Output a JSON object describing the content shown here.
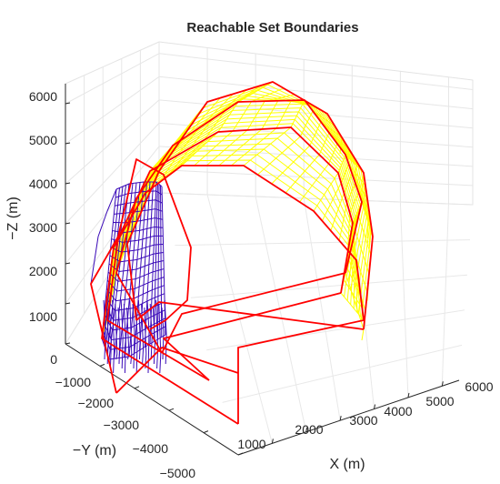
{
  "chart_data": {
    "type": "surface3d",
    "title": "Reachable Set Boundaries",
    "xlabel": "X (m)",
    "ylabel": "−Y (m)",
    "zlabel": "−Z (m)",
    "x_ticks": [
      "1000",
      "2000",
      "3000",
      "4000",
      "5000",
      "6000"
    ],
    "y_ticks": [
      "−1000",
      "−2000",
      "−3000",
      "−4000",
      "−5000"
    ],
    "z_ticks": [
      "0",
      "1000",
      "2000",
      "3000",
      "4000",
      "5000",
      "6000"
    ],
    "xlim": [
      0,
      6500
    ],
    "ylim": [
      0,
      -5000
    ],
    "zlim": [
      0,
      6500
    ],
    "grid": true,
    "series": [
      {
        "role": "large boundary surface (mesh)",
        "color": "#ffff00"
      },
      {
        "role": "small boundary surface (mesh)",
        "color": "#3a0ab8"
      },
      {
        "role": "boundary curves",
        "color": "#ff0000"
      }
    ]
  }
}
